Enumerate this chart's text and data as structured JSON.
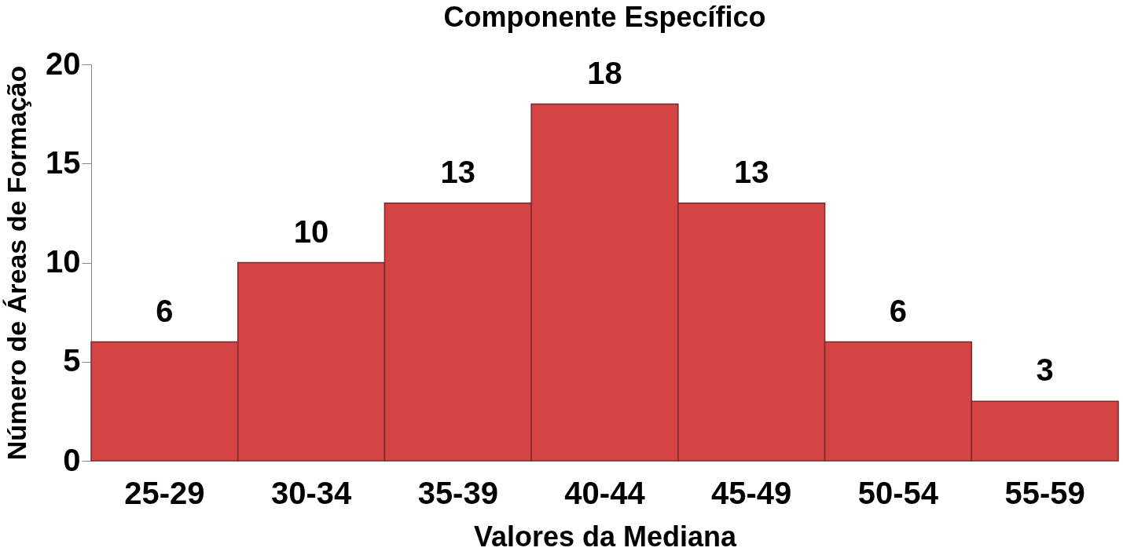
{
  "chart_data": {
    "type": "bar",
    "title": "Componente Específico",
    "xlabel": "Valores da Mediana",
    "ylabel": "Número de Áreas de Formação",
    "categories": [
      "25-29",
      "30-34",
      "35-39",
      "40-44",
      "45-49",
      "50-54",
      "55-59"
    ],
    "values": [
      6,
      10,
      13,
      18,
      13,
      6,
      3
    ],
    "color": "#d44444",
    "ylim": [
      0,
      20
    ],
    "yticks": [
      0,
      5,
      10,
      15,
      20
    ],
    "grid": false,
    "data_labels": true
  }
}
